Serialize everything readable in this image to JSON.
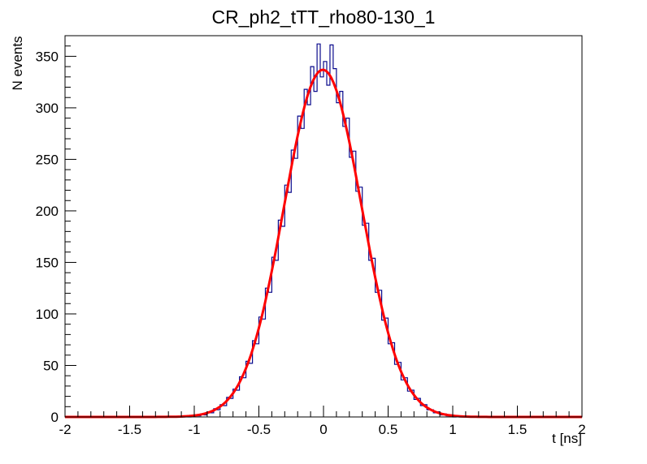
{
  "chart_data": {
    "type": "histogram",
    "title": "CR_ph2_tTT_rho80-130_1",
    "xlabel": "t [ns]",
    "ylabel": "N events",
    "xlim": [
      -2,
      2
    ],
    "ylim": [
      0,
      370
    ],
    "x_major_ticks": [
      -2,
      -1.5,
      -1,
      -0.5,
      0,
      0.5,
      1,
      1.5,
      2
    ],
    "x_tick_labels": [
      "-2",
      "-1.5",
      "-1",
      "-0.5",
      "0",
      "0.5",
      "1",
      "1.5",
      "2"
    ],
    "x_minor_step": 0.1,
    "y_major_ticks": [
      0,
      50,
      100,
      150,
      200,
      250,
      300,
      350
    ],
    "y_tick_labels": [
      "0",
      "50",
      "100",
      "150",
      "200",
      "250",
      "300",
      "350"
    ],
    "y_minor_step": 10,
    "grid": false,
    "legend": null,
    "hist_color": "#0a0a8c",
    "bin_start": -2,
    "bin_width": 0.025,
    "bins": [
      0,
      0,
      0,
      0,
      0,
      0,
      0,
      0,
      0,
      0,
      0,
      0,
      0,
      0,
      0,
      0,
      0,
      0,
      0,
      0,
      0,
      0,
      0,
      0,
      0,
      0,
      0,
      0,
      0,
      0,
      0,
      0,
      0,
      0,
      0,
      0,
      0,
      1,
      0,
      1,
      2,
      1,
      3,
      2,
      5,
      4,
      8,
      7,
      12,
      11,
      19,
      18,
      27,
      26,
      39,
      38,
      54,
      52,
      74,
      71,
      97,
      95,
      125,
      121,
      155,
      152,
      191,
      185,
      225,
      218,
      259,
      251,
      292,
      280,
      318,
      303,
      340,
      316,
      362,
      330,
      345,
      322,
      361,
      338,
      305,
      316,
      282,
      290,
      252,
      258,
      219,
      223,
      186,
      188,
      152,
      154,
      121,
      123,
      94,
      96,
      71,
      72,
      51,
      53,
      36,
      38,
      25,
      26,
      17,
      18,
      11,
      12,
      7,
      7,
      4,
      5,
      2,
      3,
      1,
      2,
      0,
      1,
      0,
      0,
      0,
      0,
      0,
      0,
      0,
      0,
      0,
      0,
      0,
      0,
      0,
      0,
      0,
      0,
      0,
      0,
      0,
      0,
      0,
      0,
      0,
      0,
      0,
      0,
      0,
      0,
      0,
      0,
      0,
      0,
      0,
      0,
      0,
      0,
      0,
      0
    ],
    "fit": {
      "type": "gaussian",
      "amplitude": 337,
      "mean": -0.005,
      "sigma": 0.3,
      "color": "#ff0000"
    }
  }
}
